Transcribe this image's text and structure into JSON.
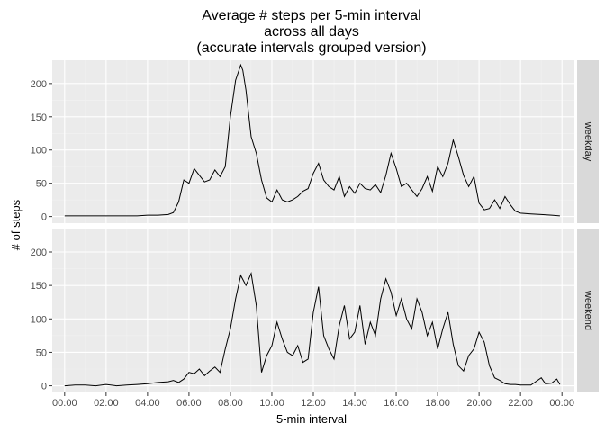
{
  "chart_data": {
    "type": "line",
    "title": [
      "Average # steps per 5-min interval",
      "across all days",
      "(accurate intervals grouped version)"
    ],
    "xlabel": "5-min interval",
    "ylabel": "# of steps",
    "ylim": [
      -10,
      235
    ],
    "yticks": [
      0,
      50,
      100,
      150,
      200
    ],
    "xticks": [
      "00:00",
      "02:00",
      "04:00",
      "06:00",
      "08:00",
      "10:00",
      "12:00",
      "14:00",
      "16:00",
      "18:00",
      "20:00",
      "22:00",
      "00:00"
    ],
    "xtick_hours": [
      0,
      2,
      4,
      6,
      8,
      10,
      12,
      14,
      16,
      18,
      20,
      22,
      24
    ],
    "xlim_hours": [
      -0.6,
      24.6
    ],
    "grid": true,
    "line_color": "#000000",
    "panel_bg": "#ebebeb",
    "strip_bg": "#d9d9d9",
    "series": [
      {
        "name": "weekday",
        "x_hours": [
          0,
          0.5,
          1,
          1.5,
          2,
          2.5,
          3,
          3.5,
          4,
          4.5,
          5,
          5.25,
          5.5,
          5.75,
          6,
          6.25,
          6.5,
          6.75,
          7,
          7.25,
          7.5,
          7.75,
          8,
          8.25,
          8.5,
          8.6,
          8.75,
          9,
          9.25,
          9.5,
          9.75,
          10,
          10.25,
          10.5,
          10.75,
          11,
          11.25,
          11.5,
          11.75,
          12,
          12.25,
          12.5,
          12.75,
          13,
          13.25,
          13.5,
          13.75,
          14,
          14.25,
          14.5,
          14.75,
          15,
          15.25,
          15.5,
          15.75,
          16,
          16.25,
          16.5,
          16.75,
          17,
          17.25,
          17.5,
          17.75,
          18,
          18.25,
          18.5,
          18.75,
          19,
          19.25,
          19.5,
          19.75,
          20,
          20.25,
          20.5,
          20.75,
          21,
          21.25,
          21.5,
          21.75,
          22,
          22.5,
          23,
          23.5,
          23.9
        ],
        "y": [
          1,
          1,
          1,
          1,
          1,
          1,
          1,
          1,
          2,
          2,
          3,
          6,
          22,
          55,
          50,
          72,
          62,
          52,
          55,
          70,
          60,
          75,
          150,
          205,
          228,
          220,
          190,
          120,
          95,
          55,
          28,
          22,
          40,
          25,
          22,
          25,
          30,
          38,
          42,
          65,
          80,
          55,
          45,
          40,
          60,
          30,
          45,
          35,
          50,
          42,
          40,
          48,
          36,
          62,
          95,
          72,
          45,
          50,
          40,
          30,
          42,
          60,
          38,
          75,
          60,
          80,
          115,
          90,
          62,
          45,
          60,
          20,
          10,
          12,
          25,
          12,
          30,
          18,
          8,
          5,
          4,
          3,
          2,
          1
        ]
      },
      {
        "name": "weekend",
        "x_hours": [
          0,
          0.5,
          1,
          1.5,
          2,
          2.5,
          3,
          3.5,
          4,
          4.5,
          5,
          5.25,
          5.5,
          5.75,
          6,
          6.25,
          6.5,
          6.75,
          7,
          7.25,
          7.5,
          7.75,
          8,
          8.25,
          8.5,
          8.75,
          9,
          9.25,
          9.5,
          9.75,
          10,
          10.25,
          10.5,
          10.75,
          11,
          11.25,
          11.5,
          11.75,
          12,
          12.25,
          12.5,
          12.75,
          13,
          13.25,
          13.5,
          13.75,
          14,
          14.25,
          14.5,
          14.75,
          15,
          15.25,
          15.5,
          15.75,
          16,
          16.25,
          16.5,
          16.75,
          17,
          17.25,
          17.5,
          17.75,
          18,
          18.25,
          18.5,
          18.75,
          19,
          19.25,
          19.5,
          19.75,
          20,
          20.25,
          20.5,
          20.75,
          21,
          21.25,
          21.5,
          21.75,
          22,
          22.5,
          23,
          23.2,
          23.5,
          23.75,
          23.9
        ],
        "y": [
          0,
          1,
          1,
          0,
          2,
          0,
          1,
          2,
          3,
          5,
          6,
          8,
          5,
          10,
          20,
          18,
          25,
          15,
          22,
          28,
          20,
          55,
          85,
          130,
          165,
          150,
          168,
          120,
          20,
          45,
          60,
          95,
          70,
          50,
          45,
          60,
          35,
          40,
          110,
          148,
          75,
          55,
          40,
          90,
          120,
          70,
          80,
          120,
          62,
          95,
          75,
          130,
          160,
          140,
          105,
          130,
          100,
          85,
          130,
          110,
          75,
          95,
          55,
          85,
          110,
          62,
          30,
          22,
          45,
          55,
          80,
          65,
          30,
          12,
          8,
          3,
          2,
          2,
          1,
          1,
          12,
          3,
          4,
          10,
          2
        ]
      }
    ]
  }
}
